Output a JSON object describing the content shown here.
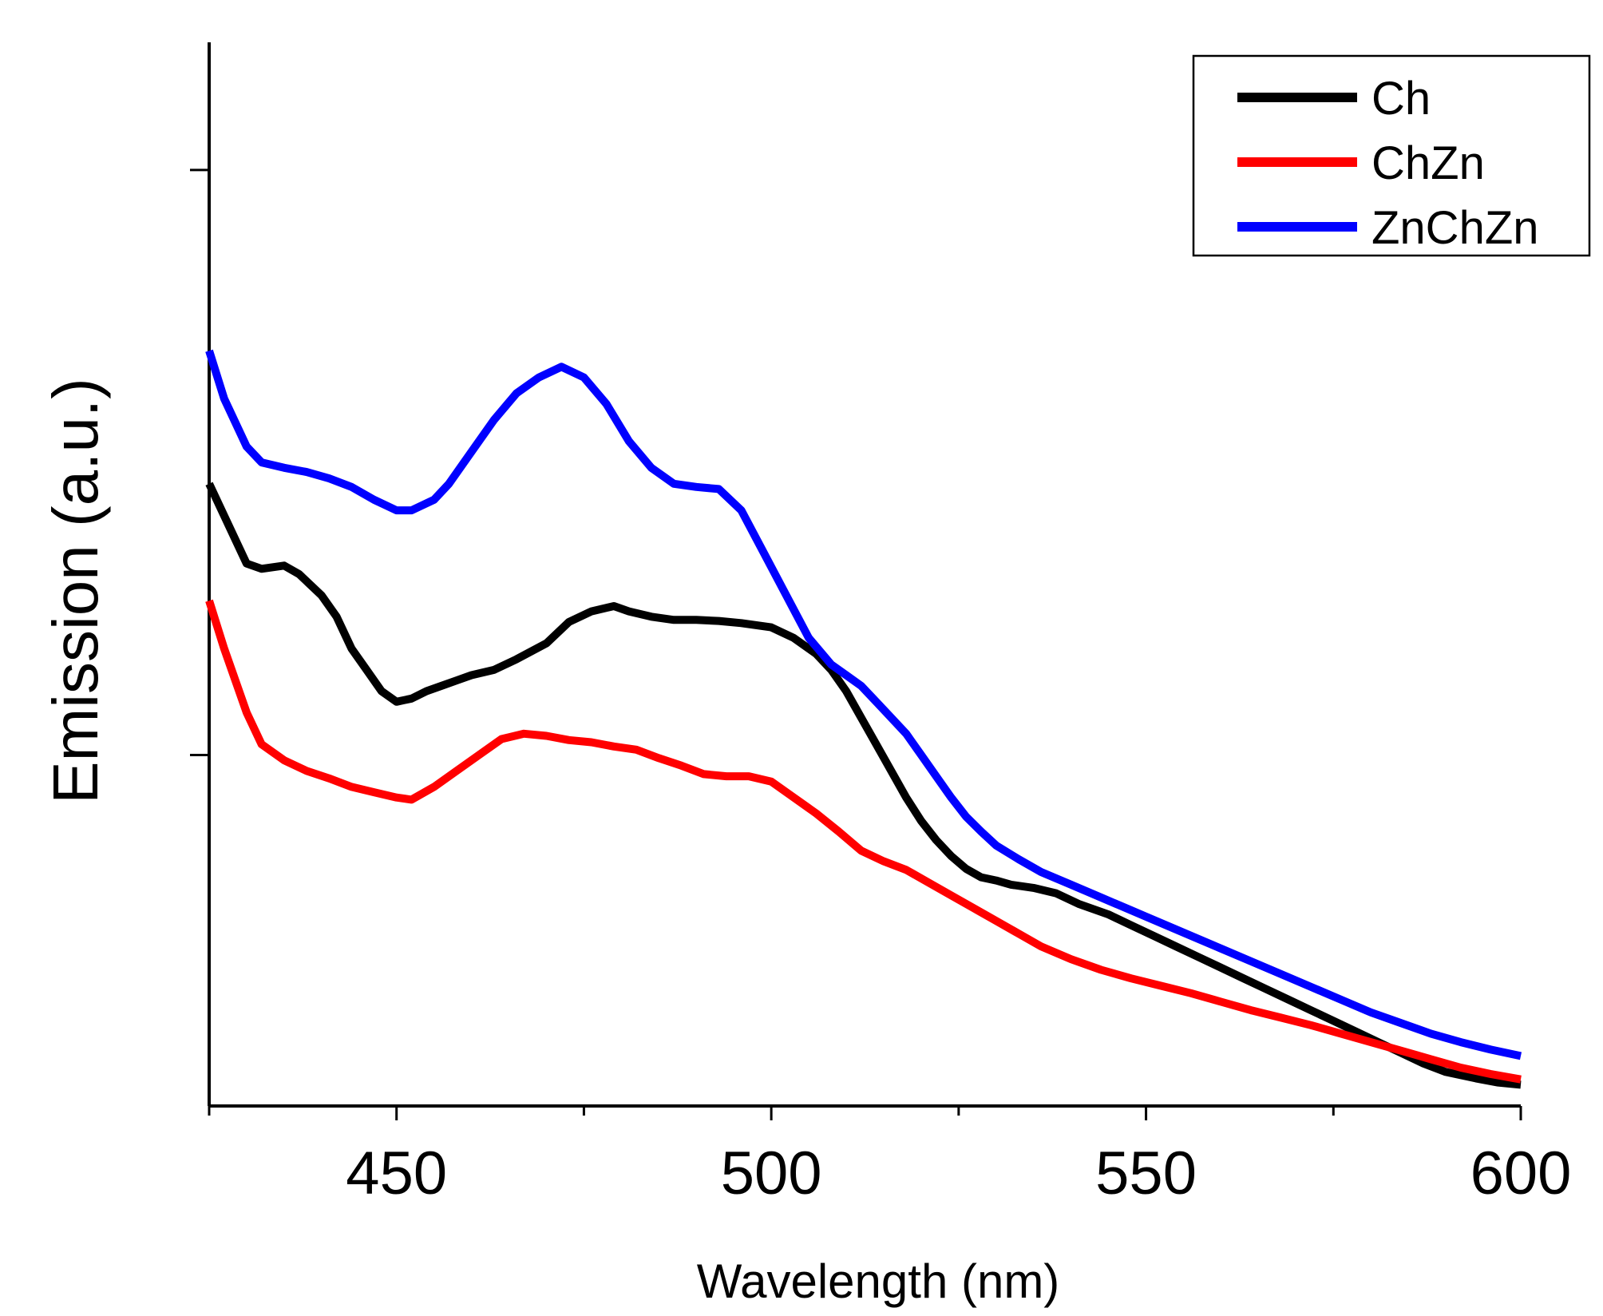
{
  "chart_data": {
    "type": "line",
    "title": "",
    "xlabel": "Wavelength (nm)",
    "ylabel": "Emission (a.u.)",
    "xlim": [
      425,
      600
    ],
    "ylim": [
      0,
      1.0
    ],
    "x_major_ticks": [
      450,
      500,
      550,
      600
    ],
    "x_minor_ticks": [
      425,
      475,
      525,
      575
    ],
    "y_ticks": [
      0.33,
      0.88
    ],
    "grid": false,
    "legend_position": "top-right",
    "series": [
      {
        "name": "Ch",
        "color": "#000000",
        "x": [
          425,
          430,
          432,
          435,
          437,
          440,
          442,
          444,
          446,
          448,
          450,
          452,
          454,
          456,
          458,
          460,
          463,
          466,
          470,
          473,
          476,
          479,
          481,
          484,
          487,
          490,
          493,
          496,
          500,
          503,
          506,
          508,
          510,
          512,
          514,
          516,
          518,
          520,
          522,
          524,
          526,
          528,
          530,
          532,
          535,
          538,
          541,
          545,
          548,
          551,
          554,
          557,
          560,
          563,
          566,
          569,
          572,
          575,
          578,
          581,
          584,
          587,
          590,
          594,
          597,
          600
        ],
        "y": [
          0.585,
          0.51,
          0.505,
          0.508,
          0.5,
          0.48,
          0.46,
          0.43,
          0.41,
          0.39,
          0.38,
          0.383,
          0.39,
          0.395,
          0.4,
          0.405,
          0.41,
          0.42,
          0.435,
          0.455,
          0.465,
          0.47,
          0.465,
          0.46,
          0.457,
          0.457,
          0.456,
          0.454,
          0.45,
          0.44,
          0.425,
          0.41,
          0.39,
          0.365,
          0.34,
          0.315,
          0.29,
          0.268,
          0.25,
          0.235,
          0.223,
          0.215,
          0.212,
          0.208,
          0.205,
          0.2,
          0.19,
          0.18,
          0.17,
          0.16,
          0.15,
          0.14,
          0.13,
          0.12,
          0.11,
          0.1,
          0.09,
          0.08,
          0.07,
          0.06,
          0.05,
          0.04,
          0.032,
          0.026,
          0.022,
          0.02
        ]
      },
      {
        "name": "ChZn",
        "color": "#ff0000",
        "x": [
          425,
          427,
          430,
          432,
          435,
          438,
          441,
          444,
          447,
          450,
          452,
          455,
          458,
          461,
          464,
          467,
          470,
          473,
          476,
          479,
          482,
          485,
          488,
          491,
          494,
          497,
          500,
          503,
          506,
          509,
          512,
          515,
          518,
          521,
          524,
          527,
          530,
          533,
          536,
          540,
          544,
          548,
          552,
          556,
          560,
          564,
          568,
          572,
          576,
          580,
          584,
          588,
          592,
          596,
          600
        ],
        "y": [
          0.475,
          0.43,
          0.37,
          0.34,
          0.325,
          0.315,
          0.308,
          0.3,
          0.295,
          0.29,
          0.288,
          0.3,
          0.315,
          0.33,
          0.345,
          0.35,
          0.348,
          0.344,
          0.342,
          0.338,
          0.335,
          0.327,
          0.32,
          0.312,
          0.31,
          0.31,
          0.305,
          0.29,
          0.275,
          0.258,
          0.24,
          0.23,
          0.222,
          0.21,
          0.198,
          0.186,
          0.174,
          0.162,
          0.15,
          0.138,
          0.128,
          0.12,
          0.113,
          0.106,
          0.098,
          0.09,
          0.083,
          0.076,
          0.068,
          0.06,
          0.052,
          0.044,
          0.036,
          0.03,
          0.025
        ]
      },
      {
        "name": "ZnChZn",
        "color": "#0000ff",
        "x": [
          425,
          427,
          430,
          432,
          435,
          438,
          441,
          444,
          447,
          450,
          452,
          455,
          457,
          460,
          463,
          466,
          469,
          472,
          475,
          478,
          481,
          484,
          487,
          490,
          493,
          496,
          499,
          502,
          505,
          508,
          510,
          512,
          514,
          516,
          518,
          520,
          522,
          524,
          526,
          528,
          530,
          533,
          536,
          540,
          544,
          548,
          552,
          556,
          560,
          564,
          568,
          572,
          576,
          580,
          584,
          588,
          592,
          596,
          600
        ],
        "y": [
          0.71,
          0.665,
          0.62,
          0.605,
          0.6,
          0.596,
          0.59,
          0.582,
          0.57,
          0.56,
          0.56,
          0.57,
          0.585,
          0.615,
          0.645,
          0.67,
          0.685,
          0.695,
          0.685,
          0.66,
          0.625,
          0.6,
          0.585,
          0.582,
          0.58,
          0.56,
          0.52,
          0.48,
          0.44,
          0.415,
          0.405,
          0.395,
          0.38,
          0.365,
          0.35,
          0.33,
          0.31,
          0.29,
          0.272,
          0.258,
          0.245,
          0.232,
          0.22,
          0.208,
          0.196,
          0.184,
          0.172,
          0.16,
          0.148,
          0.136,
          0.124,
          0.112,
          0.1,
          0.088,
          0.078,
          0.068,
          0.06,
          0.053,
          0.047
        ]
      }
    ]
  }
}
